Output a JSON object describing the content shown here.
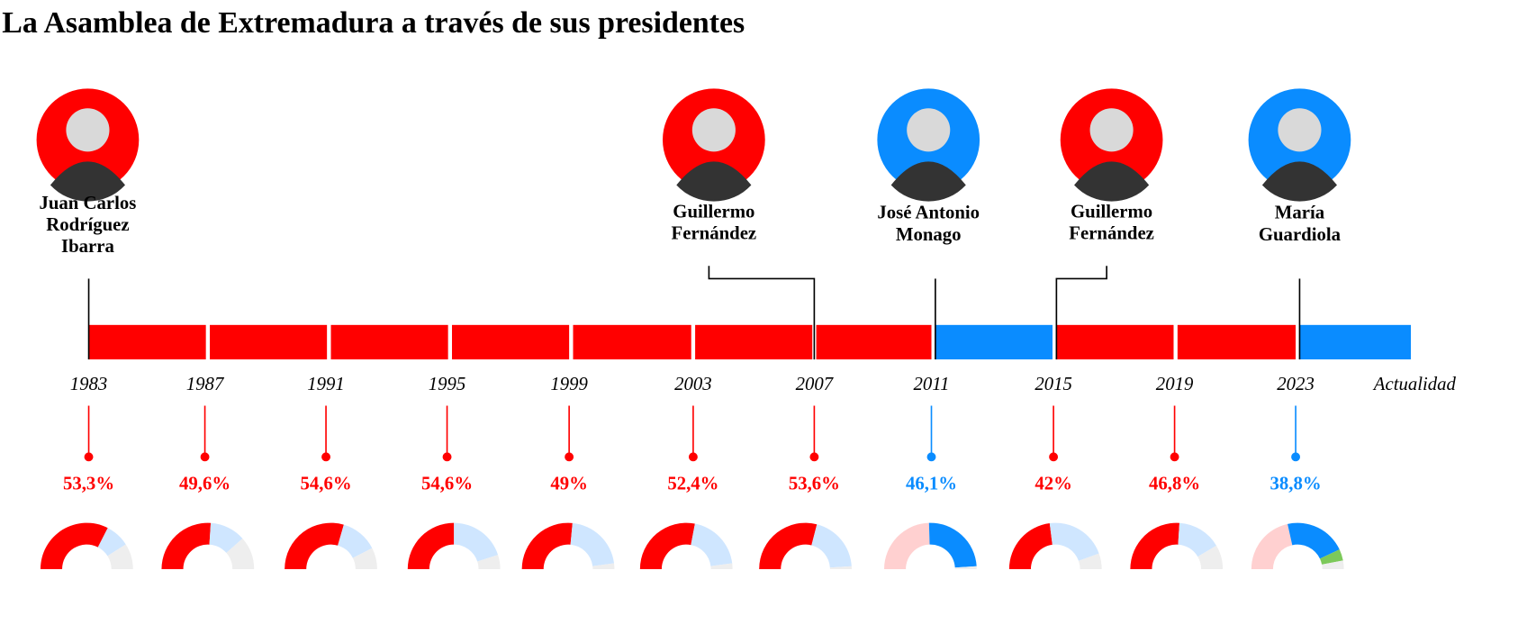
{
  "title": "La Asamblea de Extremadura a través de sus presidentes",
  "presidents": [
    {
      "name_lines": [
        "Juan Carlos",
        "Rodríguez",
        "Ibarra"
      ],
      "color": "#ff0000"
    },
    {
      "name_lines": [
        "Guillermo",
        "Fernández"
      ],
      "color": "#ff0000"
    },
    {
      "name_lines": [
        "José Antonio",
        "Monago"
      ],
      "color": "#0a8cff"
    },
    {
      "name_lines": [
        "Guillermo",
        "Fernández"
      ],
      "color": "#ff0000"
    },
    {
      "name_lines": [
        "María",
        "Guardiola"
      ],
      "color": "#0a8cff"
    }
  ],
  "years": [
    "1983",
    "1987",
    "1991",
    "1995",
    "1999",
    "2003",
    "2007",
    "2011",
    "2015",
    "2019",
    "2023",
    "Actualidad"
  ],
  "elections": [
    {
      "value": 53.3,
      "label": "53,3%",
      "color": "#ff0000",
      "seats": [
        {
          "color": "#ff0000",
          "value": 65
        },
        {
          "color": "#cfe6ff",
          "value": 17
        },
        {
          "color": "#eeeeee",
          "value": 18
        }
      ]
    },
    {
      "value": 49.6,
      "label": "49,6%",
      "color": "#ff0000",
      "seats": [
        {
          "color": "#ff0000",
          "value": 52
        },
        {
          "color": "#cfe6ff",
          "value": 25
        },
        {
          "color": "#eeeeee",
          "value": 23
        }
      ]
    },
    {
      "value": 54.6,
      "label": "54,6%",
      "color": "#ff0000",
      "seats": [
        {
          "color": "#ff0000",
          "value": 59
        },
        {
          "color": "#cfe6ff",
          "value": 26
        },
        {
          "color": "#eeeeee",
          "value": 15
        }
      ]
    },
    {
      "value": 54.6,
      "label": "54,6%",
      "color": "#ff0000",
      "seats": [
        {
          "color": "#ff0000",
          "value": 50
        },
        {
          "color": "#cfe6ff",
          "value": 40
        },
        {
          "color": "#eeeeee",
          "value": 10
        }
      ]
    },
    {
      "value": 49,
      "label": "49%",
      "color": "#ff0000",
      "seats": [
        {
          "color": "#ff0000",
          "value": 53
        },
        {
          "color": "#cfe6ff",
          "value": 43
        },
        {
          "color": "#eeeeee",
          "value": 4
        }
      ]
    },
    {
      "value": 52.4,
      "label": "52,4%",
      "color": "#ff0000",
      "seats": [
        {
          "color": "#ff0000",
          "value": 56
        },
        {
          "color": "#cfe6ff",
          "value": 40
        },
        {
          "color": "#eeeeee",
          "value": 4
        }
      ]
    },
    {
      "value": 53.6,
      "label": "53,6%",
      "color": "#ff0000",
      "seats": [
        {
          "color": "#ff0000",
          "value": 58
        },
        {
          "color": "#cfe6ff",
          "value": 40
        },
        {
          "color": "#eeeeee",
          "value": 2
        }
      ]
    },
    {
      "value": 46.1,
      "label": "46,1%",
      "color": "#0a8cff",
      "seats": [
        {
          "color": "#ffd0d0",
          "value": 49
        },
        {
          "color": "#0a8cff",
          "value": 49
        },
        {
          "color": "#eeeeee",
          "value": 2
        }
      ]
    },
    {
      "value": 42,
      "label": "42%",
      "color": "#ff0000",
      "seats": [
        {
          "color": "#ff0000",
          "value": 46
        },
        {
          "color": "#cfe6ff",
          "value": 43
        },
        {
          "color": "#eeeeee",
          "value": 11
        }
      ]
    },
    {
      "value": 46.8,
      "label": "46,8%",
      "color": "#ff0000",
      "seats": [
        {
          "color": "#ff0000",
          "value": 52
        },
        {
          "color": "#cfe6ff",
          "value": 31
        },
        {
          "color": "#eeeeee",
          "value": 17
        }
      ]
    },
    {
      "value": 38.8,
      "label": "38,8%",
      "color": "#0a8cff",
      "seats": [
        {
          "color": "#ffd0d0",
          "value": 43
        },
        {
          "color": "#0a8cff",
          "value": 43
        },
        {
          "color": "#7cc95a",
          "value": 8
        },
        {
          "color": "#eeeeee",
          "value": 6
        }
      ]
    }
  ]
}
